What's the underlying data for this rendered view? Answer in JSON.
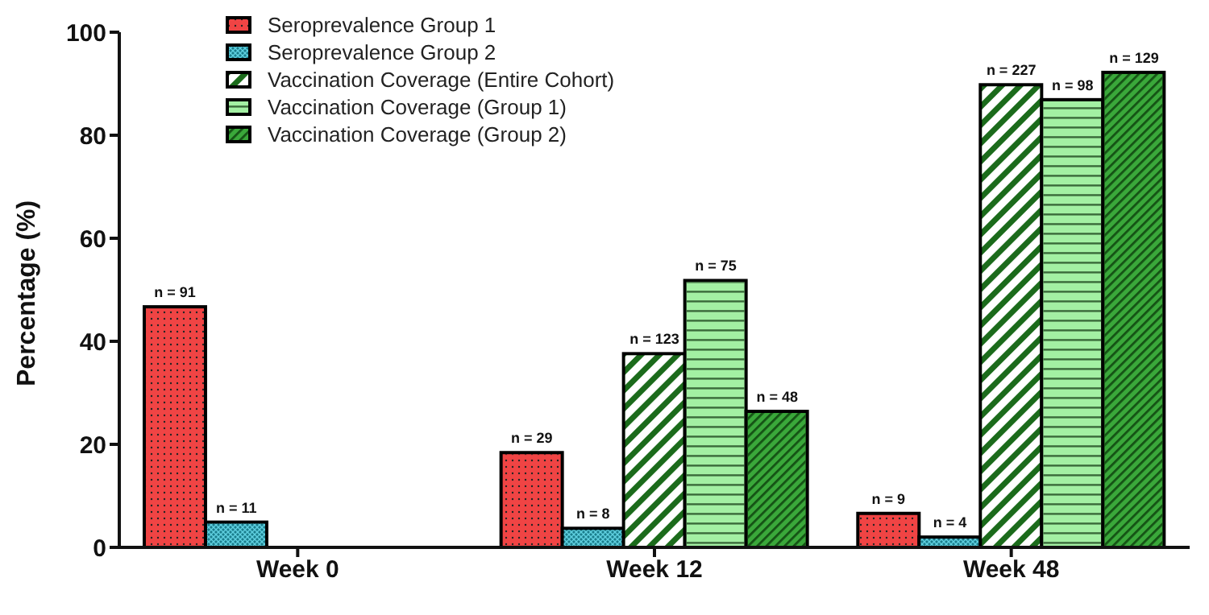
{
  "chart_data": {
    "type": "bar",
    "ylabel": "Percentage (%)",
    "categories": [
      "Week 0",
      "Week 12",
      "Week 48"
    ],
    "ylim": [
      0,
      100
    ],
    "yticks": [
      0,
      20,
      40,
      60,
      80,
      100
    ],
    "legend": "top left",
    "grid": false,
    "series": [
      {
        "name": "Seroprevalence Group 1",
        "color": "#f04444",
        "values": [
          46.7,
          18.4,
          6.6
        ]
      },
      {
        "name": "Seroprevalence Group 2",
        "color": "#1a7d8c",
        "values": [
          4.9,
          3.7,
          2.0
        ]
      },
      {
        "name": "Vaccination Coverage (Entire Cohort)",
        "color": "#1b6b1b",
        "values": [
          null,
          37.6,
          89.8
        ]
      },
      {
        "name": "Vaccination Coverage (Group 1)",
        "color": "#a3f0a3",
        "values": [
          null,
          51.8,
          86.9
        ]
      },
      {
        "name": "Vaccination Coverage (Group 2)",
        "color": "#3aa83a",
        "values": [
          null,
          26.4,
          92.2
        ]
      }
    ],
    "annotations": [
      "n = 91",
      "n = 11",
      "n = 29",
      "n = 8",
      "n = 123",
      "n = 75",
      "n = 48",
      "n = 9",
      "n = 4",
      "n = 227",
      "n = 98",
      "n = 129"
    ]
  }
}
